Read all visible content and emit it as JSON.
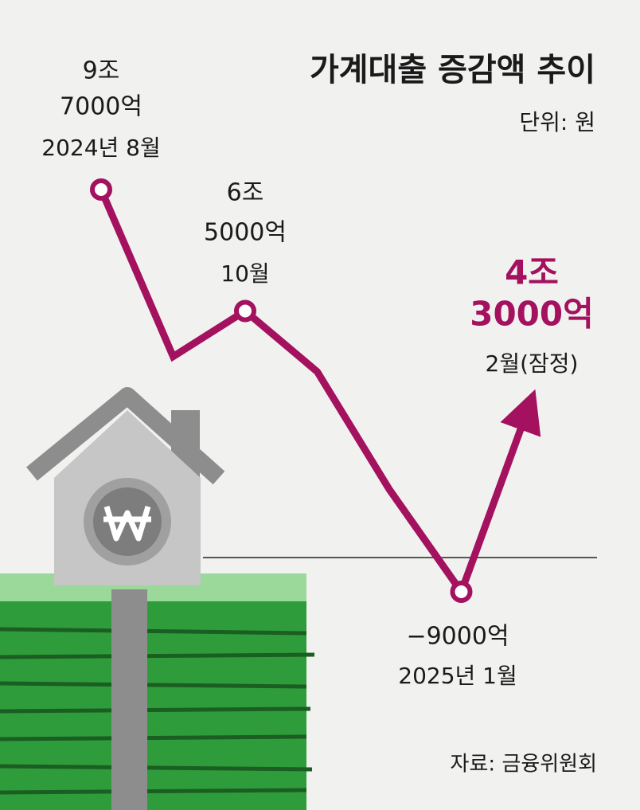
{
  "chart_data": {
    "type": "line",
    "title": "가계대출 증감액 추이",
    "unit": "단위: 원",
    "source": "자료: 금융위원회",
    "categories": [
      "2024년 8월",
      null,
      "10월",
      null,
      null,
      "2025년 1월",
      "2월(잠정)"
    ],
    "values": [
      97000,
      53000,
      65000,
      49000,
      18000,
      -9000,
      43000
    ],
    "value_labels": [
      [
        "9조",
        "7000억"
      ],
      null,
      [
        "6조",
        "5000억"
      ],
      null,
      null,
      [
        "−9000억"
      ],
      [
        "4조",
        "3000억"
      ]
    ],
    "color": "#a3115f"
  }
}
